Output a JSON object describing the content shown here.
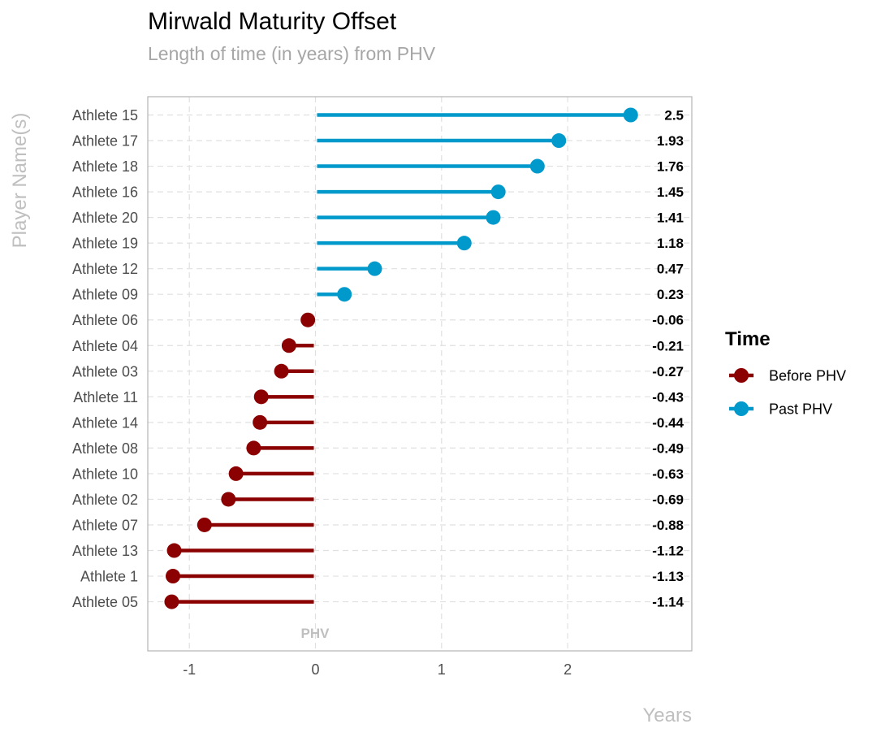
{
  "chart_data": {
    "type": "lollipop",
    "title": "Mirwald Maturity Offset",
    "subtitle": "Length of time (in years) from PHV",
    "xlabel": "Years",
    "ylabel": "Player Name(s)",
    "xlim": [
      -1.33,
      2.98
    ],
    "xticks": [
      -1,
      0,
      1,
      2
    ],
    "xtick_labels": [
      "-1",
      "0",
      "1",
      "2"
    ],
    "grid": true,
    "legend": {
      "title": "Time",
      "position": "right",
      "entries": [
        {
          "name": "Before PHV",
          "color": "#8b0000"
        },
        {
          "name": "Past PHV",
          "color": "#0099cc"
        }
      ]
    },
    "annotation": {
      "text": "PHV",
      "x": 0
    },
    "points": [
      {
        "name": "Athlete 15",
        "value": 2.5,
        "label": "2.5",
        "group": "Past PHV"
      },
      {
        "name": "Athlete 17",
        "value": 1.93,
        "label": "1.93",
        "group": "Past PHV"
      },
      {
        "name": "Athlete 18",
        "value": 1.76,
        "label": "1.76",
        "group": "Past PHV"
      },
      {
        "name": "Athlete 16",
        "value": 1.45,
        "label": "1.45",
        "group": "Past PHV"
      },
      {
        "name": "Athlete 20",
        "value": 1.41,
        "label": "1.41",
        "group": "Past PHV"
      },
      {
        "name": "Athlete 19",
        "value": 1.18,
        "label": "1.18",
        "group": "Past PHV"
      },
      {
        "name": "Athlete 12",
        "value": 0.47,
        "label": "0.47",
        "group": "Past PHV"
      },
      {
        "name": "Athlete 09",
        "value": 0.23,
        "label": "0.23",
        "group": "Past PHV"
      },
      {
        "name": "Athlete 06",
        "value": -0.06,
        "label": "-0.06",
        "group": "Before PHV"
      },
      {
        "name": "Athlete 04",
        "value": -0.21,
        "label": "-0.21",
        "group": "Before PHV"
      },
      {
        "name": "Athlete 03",
        "value": -0.27,
        "label": "-0.27",
        "group": "Before PHV"
      },
      {
        "name": "Athlete 11",
        "value": -0.43,
        "label": "-0.43",
        "group": "Before PHV"
      },
      {
        "name": "Athlete 14",
        "value": -0.44,
        "label": "-0.44",
        "group": "Before PHV"
      },
      {
        "name": "Athlete 08",
        "value": -0.49,
        "label": "-0.49",
        "group": "Before PHV"
      },
      {
        "name": "Athlete 10",
        "value": -0.63,
        "label": "-0.63",
        "group": "Before PHV"
      },
      {
        "name": "Athlete 02",
        "value": -0.69,
        "label": "-0.69",
        "group": "Before PHV"
      },
      {
        "name": "Athlete 07",
        "value": -0.88,
        "label": "-0.88",
        "group": "Before PHV"
      },
      {
        "name": "Athlete 13",
        "value": -1.12,
        "label": "-1.12",
        "group": "Before PHV"
      },
      {
        "name": "Athlete 1",
        "value": -1.13,
        "label": "-1.13",
        "group": "Before PHV"
      },
      {
        "name": "Athlete 05",
        "value": -1.14,
        "label": "-1.14",
        "group": "Before PHV"
      }
    ]
  }
}
